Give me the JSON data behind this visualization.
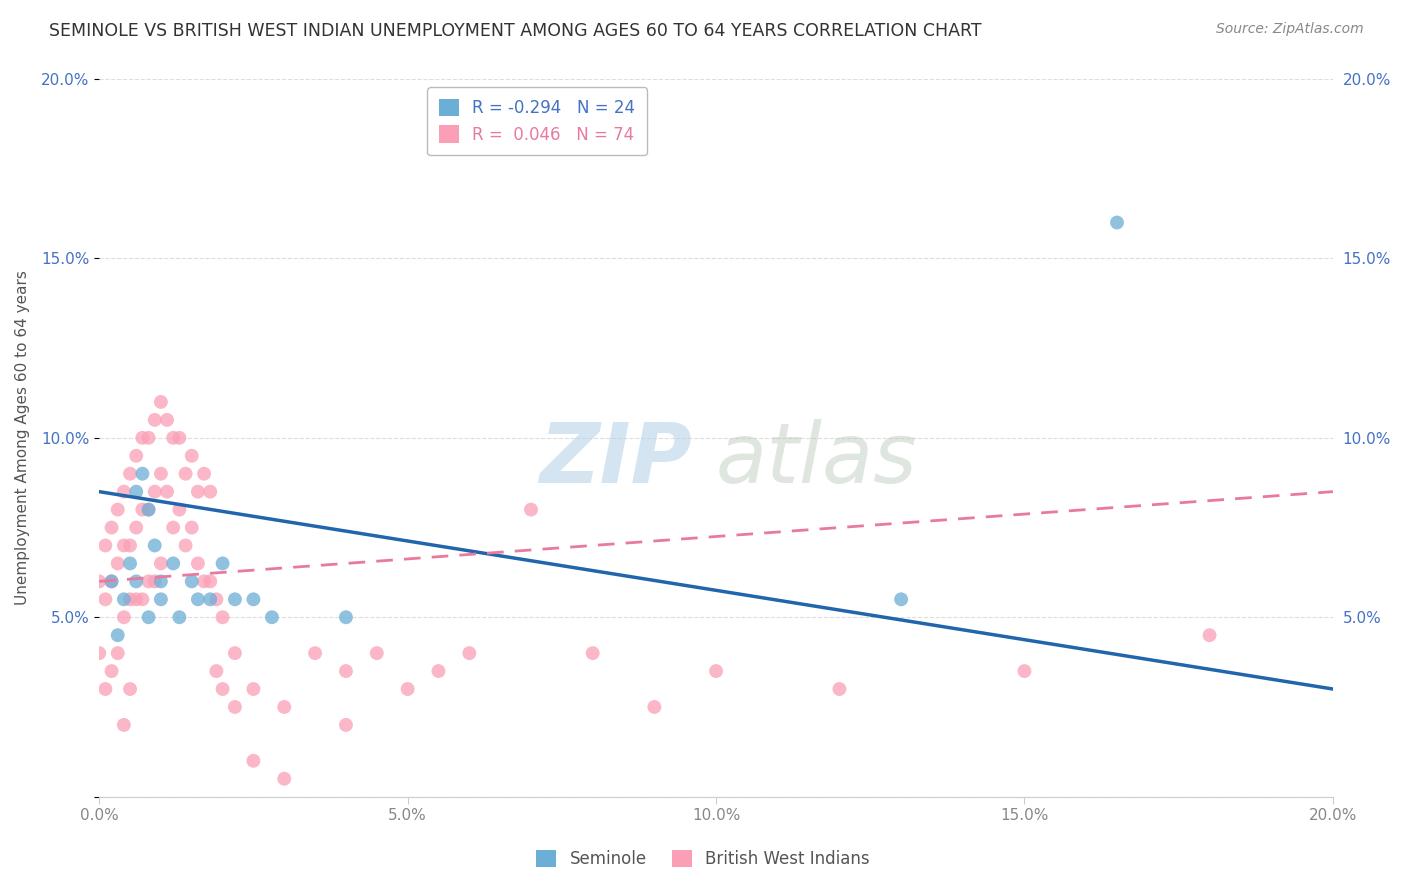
{
  "title": "SEMINOLE VS BRITISH WEST INDIAN UNEMPLOYMENT AMONG AGES 60 TO 64 YEARS CORRELATION CHART",
  "source": "Source: ZipAtlas.com",
  "ylabel": "Unemployment Among Ages 60 to 64 years",
  "xlim": [
    0.0,
    0.2
  ],
  "ylim": [
    0.0,
    0.2
  ],
  "seminole_color": "#6baed6",
  "bwi_color": "#fa9fb5",
  "seminole_line_color": "#2166ac",
  "bwi_line_color": "#e87aa0",
  "seminole_R": -0.294,
  "seminole_N": 24,
  "bwi_R": 0.046,
  "bwi_N": 74,
  "background_color": "#ffffff",
  "grid_color": "#dddddd",
  "seminole_x": [
    0.002,
    0.003,
    0.004,
    0.005,
    0.006,
    0.006,
    0.007,
    0.008,
    0.008,
    0.009,
    0.01,
    0.01,
    0.012,
    0.013,
    0.015,
    0.016,
    0.018,
    0.02,
    0.022,
    0.025,
    0.028,
    0.04,
    0.13,
    0.165
  ],
  "seminole_y": [
    0.06,
    0.045,
    0.055,
    0.065,
    0.085,
    0.06,
    0.09,
    0.08,
    0.05,
    0.07,
    0.06,
    0.055,
    0.065,
    0.05,
    0.06,
    0.055,
    0.055,
    0.065,
    0.055,
    0.055,
    0.05,
    0.05,
    0.055,
    0.16
  ],
  "bwi_x": [
    0.0,
    0.0,
    0.001,
    0.001,
    0.001,
    0.002,
    0.002,
    0.002,
    0.003,
    0.003,
    0.003,
    0.004,
    0.004,
    0.004,
    0.004,
    0.005,
    0.005,
    0.005,
    0.005,
    0.006,
    0.006,
    0.006,
    0.007,
    0.007,
    0.007,
    0.008,
    0.008,
    0.008,
    0.009,
    0.009,
    0.009,
    0.01,
    0.01,
    0.01,
    0.011,
    0.011,
    0.012,
    0.012,
    0.013,
    0.013,
    0.014,
    0.014,
    0.015,
    0.015,
    0.016,
    0.016,
    0.017,
    0.017,
    0.018,
    0.018,
    0.019,
    0.019,
    0.02,
    0.02,
    0.022,
    0.022,
    0.025,
    0.025,
    0.03,
    0.03,
    0.035,
    0.04,
    0.04,
    0.045,
    0.05,
    0.055,
    0.06,
    0.07,
    0.08,
    0.09,
    0.1,
    0.12,
    0.15,
    0.18
  ],
  "bwi_y": [
    0.06,
    0.04,
    0.07,
    0.055,
    0.03,
    0.075,
    0.06,
    0.035,
    0.08,
    0.065,
    0.04,
    0.085,
    0.07,
    0.05,
    0.02,
    0.09,
    0.07,
    0.055,
    0.03,
    0.095,
    0.075,
    0.055,
    0.1,
    0.08,
    0.055,
    0.1,
    0.08,
    0.06,
    0.105,
    0.085,
    0.06,
    0.11,
    0.09,
    0.065,
    0.105,
    0.085,
    0.1,
    0.075,
    0.1,
    0.08,
    0.09,
    0.07,
    0.095,
    0.075,
    0.085,
    0.065,
    0.09,
    0.06,
    0.085,
    0.06,
    0.055,
    0.035,
    0.05,
    0.03,
    0.04,
    0.025,
    0.03,
    0.01,
    0.025,
    0.005,
    0.04,
    0.035,
    0.02,
    0.04,
    0.03,
    0.035,
    0.04,
    0.08,
    0.04,
    0.025,
    0.035,
    0.03,
    0.035,
    0.045
  ],
  "seminole_trend_x": [
    0.0,
    0.2
  ],
  "seminole_trend_y": [
    0.085,
    0.03
  ],
  "bwi_trend_x": [
    0.0,
    0.2
  ],
  "bwi_trend_y": [
    0.06,
    0.085
  ]
}
